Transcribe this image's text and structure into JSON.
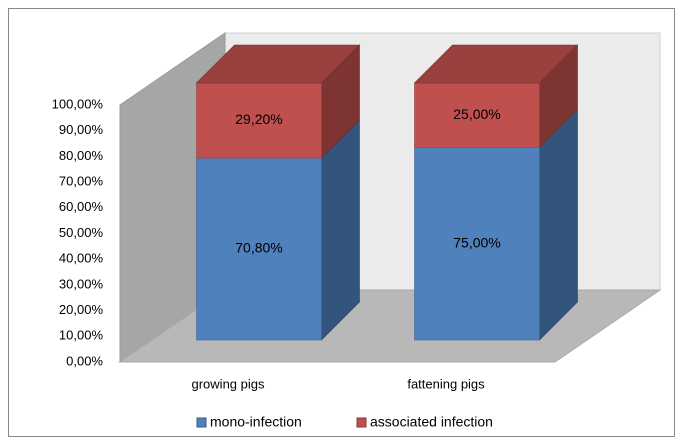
{
  "chart_data": {
    "type": "bar3d_stacked",
    "categories": [
      "growing pigs",
      "fattening pigs"
    ],
    "series": [
      {
        "name": "mono-infection",
        "color": "#4f81bd",
        "values": [
          70.8,
          75
        ],
        "value_labels": [
          "70,80%",
          "75,00%"
        ]
      },
      {
        "name": "associated infection",
        "color": "#c0504d",
        "values": [
          29.2,
          25
        ],
        "value_labels": [
          "29,20%",
          "25,00%"
        ]
      }
    ],
    "ylim": [
      0,
      100
    ],
    "yticks": [
      {
        "value": 0,
        "label": "0,00%"
      },
      {
        "value": 10,
        "label": "10,00%"
      },
      {
        "value": 20,
        "label": "20,00%"
      },
      {
        "value": 30,
        "label": "30,00%"
      },
      {
        "value": 40,
        "label": "40,00%"
      },
      {
        "value": 50,
        "label": "50,00%"
      },
      {
        "value": 60,
        "label": "60,00%"
      },
      {
        "value": 70,
        "label": "70,00%"
      },
      {
        "value": 80,
        "label": "80,00%"
      },
      {
        "value": 90,
        "label": "90,00%"
      },
      {
        "value": 100,
        "label": "100,00%"
      }
    ],
    "legend": "bottom",
    "grid": false
  }
}
